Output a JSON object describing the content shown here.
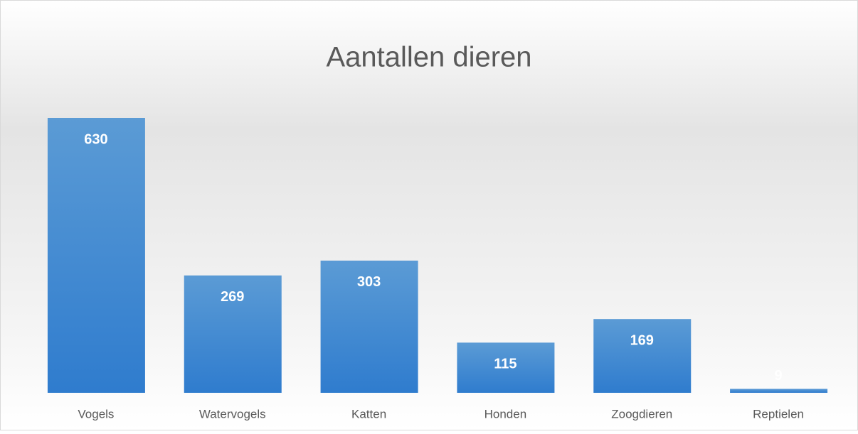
{
  "chart_data": {
    "type": "bar",
    "title": "Aantallen dieren",
    "categories": [
      "Vogels",
      "Watervogels",
      "Katten",
      "Honden",
      "Zoogdieren",
      "Reptielen"
    ],
    "values": [
      630,
      269,
      303,
      115,
      169,
      9
    ],
    "color": "#4a8fd6"
  }
}
